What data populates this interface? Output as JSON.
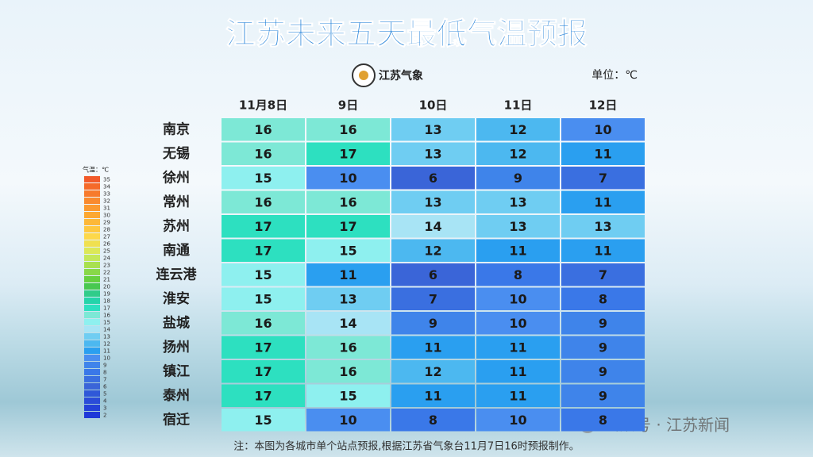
{
  "title": "江苏未来五天最低气温预报",
  "logo_text": "江苏气象",
  "unit": "单位：℃",
  "legend": {
    "label": "气温：℃",
    "values": [
      35,
      34,
      33,
      32,
      31,
      30,
      29,
      28,
      27,
      26,
      25,
      24,
      23,
      22,
      21,
      20,
      19,
      18,
      17,
      16,
      15,
      14,
      13,
      12,
      11,
      10,
      9,
      8,
      7,
      6,
      5,
      4,
      3,
      2
    ],
    "colors": [
      "#f25a2a",
      "#f56a2a",
      "#f77a2c",
      "#f98a2e",
      "#fb9a30",
      "#fca832",
      "#fdb838",
      "#fec840",
      "#fdd84a",
      "#f0e050",
      "#dce858",
      "#c4e85a",
      "#a8e050",
      "#88d848",
      "#66d040",
      "#48c850",
      "#30cc8a",
      "#24d4aa",
      "#2de0c0",
      "#7de8d6",
      "#8ef0ef",
      "#a8e4f5",
      "#6fcdf2",
      "#4cb8f0",
      "#2a9ff0",
      "#4a8ef0",
      "#3f84ea",
      "#3a78e8",
      "#3a6fe0",
      "#3a65d8",
      "#2f58d8",
      "#2a4cd8",
      "#2442d8",
      "#1e38d8"
    ]
  },
  "table": {
    "headers": [
      "11月8日",
      "9日",
      "10日",
      "11日",
      "12日"
    ],
    "rows": [
      {
        "city": "南京",
        "values": [
          16,
          16,
          13,
          12,
          10
        ]
      },
      {
        "city": "无锡",
        "values": [
          16,
          17,
          13,
          12,
          11
        ]
      },
      {
        "city": "徐州",
        "values": [
          15,
          10,
          6,
          9,
          7
        ]
      },
      {
        "city": "常州",
        "values": [
          16,
          16,
          13,
          13,
          11
        ]
      },
      {
        "city": "苏州",
        "values": [
          17,
          17,
          14,
          13,
          13
        ]
      },
      {
        "city": "南通",
        "values": [
          17,
          15,
          12,
          11,
          11
        ]
      },
      {
        "city": "连云港",
        "values": [
          15,
          11,
          6,
          8,
          7
        ]
      },
      {
        "city": "淮安",
        "values": [
          15,
          13,
          7,
          10,
          8
        ]
      },
      {
        "city": "盐城",
        "values": [
          16,
          14,
          9,
          10,
          9
        ]
      },
      {
        "city": "扬州",
        "values": [
          17,
          16,
          11,
          11,
          9
        ]
      },
      {
        "city": "镇江",
        "values": [
          17,
          16,
          12,
          11,
          9
        ]
      },
      {
        "city": "泰州",
        "values": [
          17,
          15,
          11,
          11,
          9
        ]
      },
      {
        "city": "宿迁",
        "values": [
          15,
          10,
          8,
          10,
          8
        ]
      }
    ]
  },
  "note": "注：本图为各城市单个站点预报,根据江苏省气象台11月7日16时预报制作。",
  "watermark": "公众号 · 江苏新闻"
}
